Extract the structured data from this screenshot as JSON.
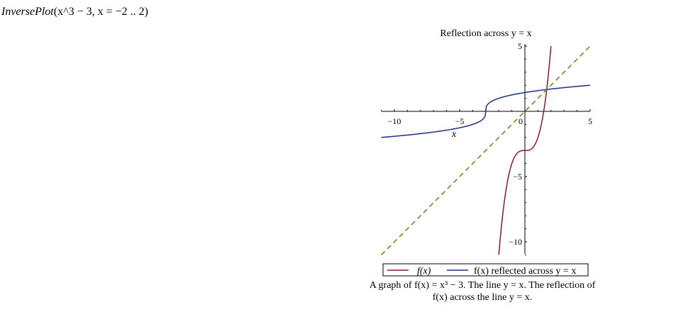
{
  "command": {
    "text": "InversePlot(x^3 − 3, x = −2 .. 2)",
    "function_name": "InversePlot",
    "arguments": "(x^3 − 3, x = −2 .. 2)"
  },
  "chart_data": {
    "type": "line",
    "title": "Reflection across y = x",
    "xlabel": "x",
    "ylabel": "",
    "xlim": [
      -11,
      5
    ],
    "ylim": [
      -11.5,
      5.3
    ],
    "x_ticks": [
      -10,
      -5,
      0,
      5
    ],
    "x_tick_labels": [
      "−10",
      "−5",
      "0",
      "5"
    ],
    "y_ticks": [
      -10,
      -5,
      5
    ],
    "y_tick_labels": [
      "−10",
      "−5",
      "5"
    ],
    "grid": false,
    "legend_position": "bottom",
    "series": [
      {
        "name": "f(x)",
        "color": "#8b1a2b",
        "style": "solid",
        "expression": "y = x^3 - 3",
        "domain": [
          -2,
          2
        ],
        "x": [
          -2,
          -1.5,
          -1,
          -0.5,
          0,
          0.5,
          1,
          1.5,
          2
        ],
        "y": [
          -11,
          -6.375,
          -4,
          -3.125,
          -3,
          -2.875,
          -2,
          0.375,
          5
        ]
      },
      {
        "name": "f(x) reflected across y = x",
        "color": "#1f2e86",
        "style": "solid",
        "expression": "y = (x + 3)^(1/3)",
        "domain": [
          -11,
          5
        ],
        "x": [
          -11,
          -6.375,
          -4,
          -3.125,
          -3,
          -2.875,
          -2,
          0.375,
          5
        ],
        "y": [
          -2,
          -1.5,
          -1,
          -0.5,
          0,
          0.5,
          1,
          1.5,
          2
        ]
      },
      {
        "name": "y = x",
        "color": "#5b8a14",
        "style": "dashed",
        "x": [
          -11,
          5
        ],
        "y": [
          -11,
          5
        ]
      }
    ]
  },
  "legend": {
    "entry_1": "f(x)",
    "entry_2": "f(x) reflected across y = x"
  },
  "caption": {
    "line1": "A graph of f(x) = x³ − 3. The line y = x. The reflection of",
    "line2": "f(x) across the line y = x."
  }
}
